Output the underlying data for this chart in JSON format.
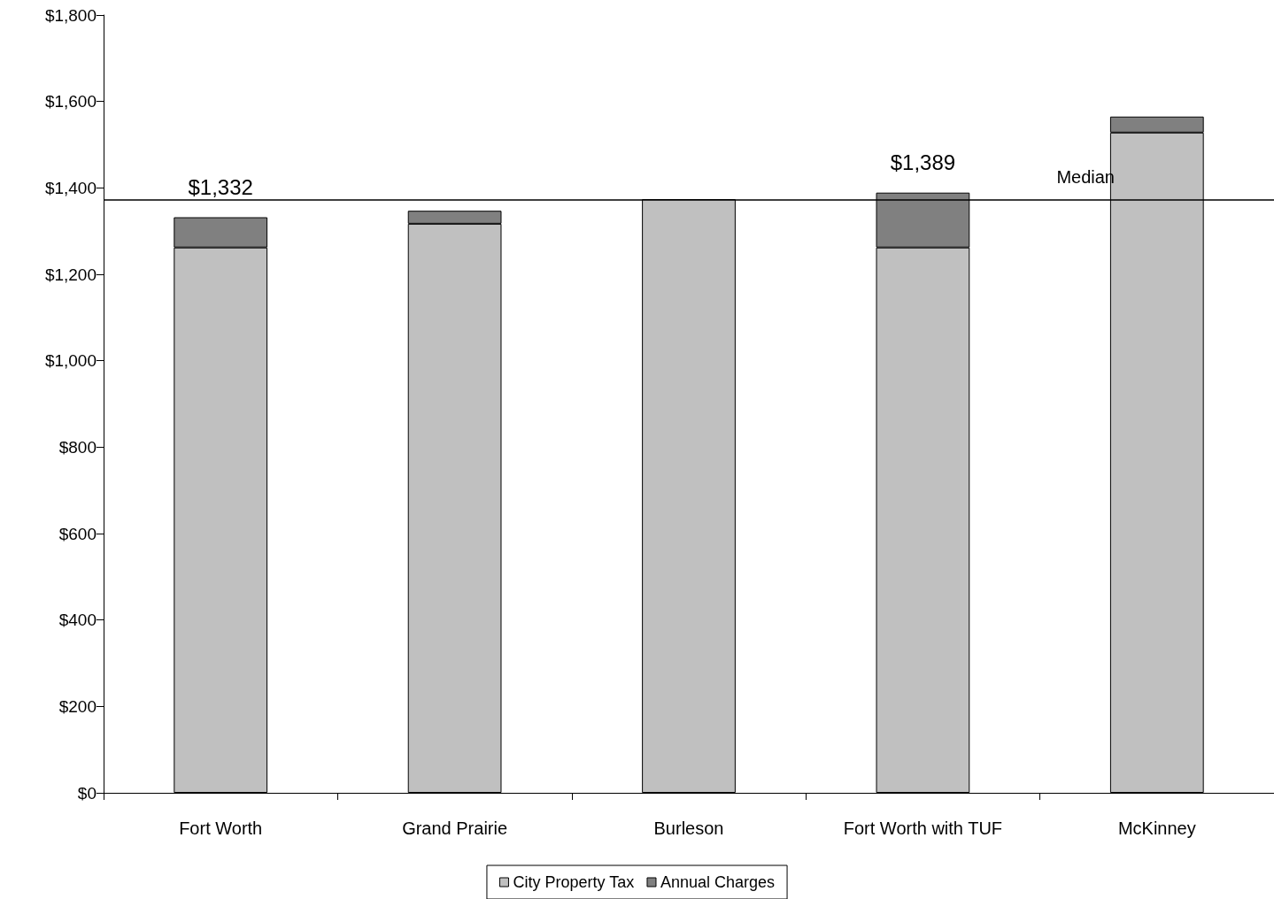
{
  "chart_data": {
    "type": "bar",
    "stacked": true,
    "categories": [
      "Fort Worth",
      "Grand Prairie",
      "Burleson",
      "Fort Worth with TUF",
      "McKinney"
    ],
    "series": [
      {
        "name": "City Property Tax",
        "color": "#c0c0c0",
        "values": [
          1262,
          1317,
          1374,
          1262,
          1528
        ]
      },
      {
        "name": "Annual Charges",
        "color": "#808080",
        "values": [
          70,
          30,
          null,
          127,
          37
        ]
      }
    ],
    "totals": [
      "$1,332",
      null,
      null,
      "$1,389",
      null
    ],
    "ylim": [
      0,
      1800
    ],
    "yticks": [
      {
        "value": 0,
        "label": "$0"
      },
      {
        "value": 200,
        "label": "$200"
      },
      {
        "value": 400,
        "label": "$400"
      },
      {
        "value": 600,
        "label": "$600"
      },
      {
        "value": 800,
        "label": "$800"
      },
      {
        "value": 1000,
        "label": "$1,000"
      },
      {
        "value": 1200,
        "label": "$1,200"
      },
      {
        "value": 1400,
        "label": "$1,400"
      },
      {
        "value": 1600,
        "label": "$1,600"
      },
      {
        "value": 1800,
        "label": "$1,800"
      }
    ],
    "ref_lines": [
      {
        "axis": "y",
        "value": 1372,
        "label": "Median",
        "color": "#000000"
      }
    ],
    "grid": false,
    "legend": "bottom"
  }
}
